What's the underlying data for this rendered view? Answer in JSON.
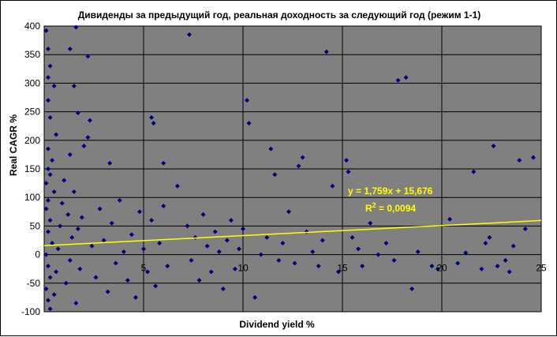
{
  "chart_data": {
    "type": "scatter",
    "title": "Дивиденды за предыдущий год, реальная доходность за следующий год (режим 1-1)",
    "xlabel": "Dividend yield %",
    "ylabel": "Real CAGR %",
    "xlim": [
      0,
      25
    ],
    "ylim": [
      -100,
      400
    ],
    "xticks": [
      0,
      5,
      10,
      15,
      20,
      25
    ],
    "xtick_labels": [
      "5",
      "10",
      "15",
      "20",
      "25"
    ],
    "yticks": [
      -100,
      -50,
      0,
      50,
      100,
      150,
      200,
      250,
      300,
      350,
      400
    ],
    "ytick_labels": [
      "-100",
      "-50",
      "0",
      "50",
      "100",
      "150",
      "200",
      "250",
      "300",
      "350",
      "400"
    ],
    "grid": true,
    "legend": "none",
    "colors": {
      "plot_bg": "#808080",
      "points": "#000080",
      "trend": "#ffff00",
      "grid": "#000000"
    },
    "trendline": {
      "slope": 1.759,
      "intercept": 15.676,
      "equation_label": "y = 1,759x + 15,676",
      "r2_prefix": "R",
      "r2_sup": "2",
      "r2_suffix": " = 0,0094"
    },
    "series": [
      {
        "marker": "diamond",
        "points": [
          [
            0.1,
            392
          ],
          [
            0.2,
            360
          ],
          [
            0.3,
            330
          ],
          [
            0.2,
            310
          ],
          [
            0.5,
            295
          ],
          [
            0.2,
            270
          ],
          [
            0.3,
            240
          ],
          [
            0.6,
            210
          ],
          [
            0.2,
            185
          ],
          [
            0.4,
            165
          ],
          [
            0.2,
            150
          ],
          [
            0.3,
            140
          ],
          [
            0.1,
            125
          ],
          [
            0.5,
            110
          ],
          [
            0.2,
            95
          ],
          [
            0.1,
            80
          ],
          [
            0.3,
            60
          ],
          [
            0.2,
            40
          ],
          [
            0.4,
            20
          ],
          [
            0.1,
            0
          ],
          [
            0.2,
            -20
          ],
          [
            0.3,
            -40
          ],
          [
            0.1,
            -60
          ],
          [
            0.2,
            -80
          ],
          [
            0.3,
            -95
          ],
          [
            0.5,
            -70
          ],
          [
            0.6,
            -30
          ],
          [
            0.7,
            10
          ],
          [
            0.8,
            50
          ],
          [
            0.9,
            90
          ],
          [
            1.0,
            130
          ],
          [
            1.1,
            -50
          ],
          [
            1.2,
            70
          ],
          [
            1.3,
            -10
          ],
          [
            1.4,
            30
          ],
          [
            1.5,
            110
          ],
          [
            1.6,
            -85
          ],
          [
            1.7,
            45
          ],
          [
            1.8,
            -25
          ],
          [
            1.9,
            65
          ],
          [
            1.5,
            295
          ],
          [
            1.3,
            360
          ],
          [
            1.6,
            398
          ],
          [
            2.2,
            347
          ],
          [
            2.3,
            235
          ],
          [
            2.2,
            205
          ],
          [
            1.7,
            248
          ],
          [
            2.0,
            190
          ],
          [
            1.3,
            175
          ],
          [
            3.3,
            160
          ],
          [
            2.4,
            15
          ],
          [
            2.6,
            -40
          ],
          [
            2.8,
            80
          ],
          [
            3.0,
            25
          ],
          [
            3.2,
            -65
          ],
          [
            3.4,
            55
          ],
          [
            3.6,
            -15
          ],
          [
            3.8,
            95
          ],
          [
            4.0,
            5
          ],
          [
            4.2,
            -45
          ],
          [
            4.4,
            35
          ],
          [
            4.6,
            -75
          ],
          [
            4.8,
            75
          ],
          [
            5.0,
            10
          ],
          [
            5.2,
            -30
          ],
          [
            5.4,
            60
          ],
          [
            5.6,
            -55
          ],
          [
            5.8,
            20
          ],
          [
            6.0,
            85
          ],
          [
            6.2,
            -20
          ],
          [
            5.4,
            240
          ],
          [
            5.5,
            230
          ],
          [
            6.0,
            160
          ],
          [
            7.3,
            385
          ],
          [
            6.7,
            120
          ],
          [
            7.2,
            50
          ],
          [
            7.4,
            -10
          ],
          [
            7.6,
            30
          ],
          [
            7.8,
            -45
          ],
          [
            8.0,
            70
          ],
          [
            8.2,
            15
          ],
          [
            8.4,
            -30
          ],
          [
            8.6,
            40
          ],
          [
            8.8,
            5
          ],
          [
            9.0,
            -60
          ],
          [
            9.2,
            25
          ],
          [
            9.4,
            60
          ],
          [
            9.6,
            -25
          ],
          [
            9.8,
            10
          ],
          [
            10.0,
            45
          ],
          [
            10.2,
            270
          ],
          [
            10.3,
            230
          ],
          [
            10.6,
            -75
          ],
          [
            10.9,
            0
          ],
          [
            11.2,
            30
          ],
          [
            11.4,
            185
          ],
          [
            11.6,
            140
          ],
          [
            11.8,
            -10
          ],
          [
            12.0,
            20
          ],
          [
            12.3,
            75
          ],
          [
            12.8,
            155
          ],
          [
            13.0,
            170
          ],
          [
            12.6,
            -15
          ],
          [
            13.2,
            40
          ],
          [
            13.5,
            5
          ],
          [
            13.8,
            -20
          ],
          [
            14.2,
            355
          ],
          [
            14.5,
            120
          ],
          [
            14.0,
            25
          ],
          [
            14.8,
            -30
          ],
          [
            15.2,
            165
          ],
          [
            15.3,
            145
          ],
          [
            15.5,
            30
          ],
          [
            15.8,
            10
          ],
          [
            16.0,
            -20
          ],
          [
            16.4,
            55
          ],
          [
            16.8,
            0
          ],
          [
            17.2,
            20
          ],
          [
            17.6,
            -10
          ],
          [
            17.8,
            305
          ],
          [
            18.2,
            310
          ],
          [
            18.5,
            -60
          ],
          [
            18.8,
            5
          ],
          [
            19.5,
            -20
          ],
          [
            19.8,
            -25
          ],
          [
            20.4,
            62
          ],
          [
            21.2,
            3
          ],
          [
            21.6,
            145
          ],
          [
            22.0,
            -25
          ],
          [
            22.4,
            30
          ],
          [
            22.6,
            190
          ],
          [
            22.8,
            -20
          ],
          [
            23.2,
            -10
          ],
          [
            23.6,
            15
          ],
          [
            23.9,
            165
          ],
          [
            24.2,
            45
          ],
          [
            24.6,
            170
          ],
          [
            22.2,
            20
          ],
          [
            20.8,
            -15
          ],
          [
            23.4,
            -30
          ]
        ]
      }
    ]
  }
}
